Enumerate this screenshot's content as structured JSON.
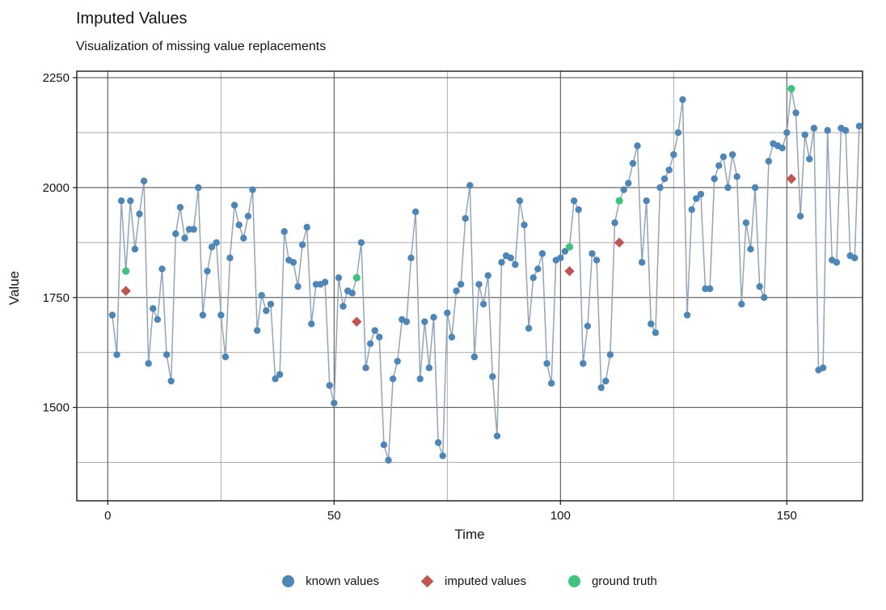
{
  "chart": {
    "title": "Imputed Values",
    "subtitle": "Visualization of missing value replacements",
    "xlabel": "Time",
    "ylabel": "Value",
    "colors": {
      "known": "#4c86b8",
      "imputed": "#c25450",
      "ground_truth": "#3ec47c",
      "line": "#92a5b8",
      "grid_major": "#474747",
      "grid_minor": "#a3a3a3",
      "frame": "#1a1a1a",
      "text": "#141414"
    },
    "legend": [
      {
        "label": "known values",
        "marker": "circle",
        "color": "#4c86b8"
      },
      {
        "label": "imputed values",
        "marker": "diamond",
        "color": "#c25450"
      },
      {
        "label": "ground truth",
        "marker": "circle",
        "color": "#3ec47c"
      }
    ]
  },
  "chart_data": {
    "type": "line",
    "title": "Imputed Values",
    "subtitle": "Visualization of missing value replacements",
    "xlabel": "Time",
    "ylabel": "Value",
    "x_ticks": [
      0,
      50,
      100,
      150
    ],
    "x_minor_ticks": [
      25,
      75,
      125
    ],
    "y_ticks": [
      1500,
      1750,
      2000,
      2250
    ],
    "y_minor_ticks": [
      1375,
      1625,
      1875,
      2125
    ],
    "xlim": [
      -7,
      167
    ],
    "ylim": [
      1290,
      2265
    ],
    "grid": true,
    "legend_position": "bottom",
    "series": [
      {
        "name": "known values",
        "marker": "circle",
        "points": [
          [
            1,
            1710
          ],
          [
            2,
            1620
          ],
          [
            3,
            1970
          ],
          [
            5,
            1970
          ],
          [
            6,
            1860
          ],
          [
            7,
            1940
          ],
          [
            8,
            2015
          ],
          [
            9,
            1600
          ],
          [
            10,
            1725
          ],
          [
            11,
            1700
          ],
          [
            12,
            1815
          ],
          [
            13,
            1620
          ],
          [
            14,
            1560
          ],
          [
            15,
            1895
          ],
          [
            16,
            1955
          ],
          [
            17,
            1885
          ],
          [
            18,
            1905
          ],
          [
            19,
            1905
          ],
          [
            20,
            2000
          ],
          [
            21,
            1710
          ],
          [
            22,
            1810
          ],
          [
            23,
            1865
          ],
          [
            24,
            1875
          ],
          [
            25,
            1710
          ],
          [
            26,
            1615
          ],
          [
            27,
            1840
          ],
          [
            28,
            1960
          ],
          [
            29,
            1915
          ],
          [
            30,
            1885
          ],
          [
            31,
            1935
          ],
          [
            32,
            1995
          ],
          [
            33,
            1675
          ],
          [
            34,
            1755
          ],
          [
            35,
            1720
          ],
          [
            36,
            1735
          ],
          [
            37,
            1565
          ],
          [
            38,
            1575
          ],
          [
            39,
            1900
          ],
          [
            40,
            1835
          ],
          [
            41,
            1830
          ],
          [
            42,
            1775
          ],
          [
            43,
            1870
          ],
          [
            44,
            1910
          ],
          [
            45,
            1690
          ],
          [
            46,
            1780
          ],
          [
            47,
            1780
          ],
          [
            48,
            1785
          ],
          [
            49,
            1550
          ],
          [
            50,
            1510
          ],
          [
            51,
            1795
          ],
          [
            52,
            1730
          ],
          [
            53,
            1765
          ],
          [
            54,
            1760
          ],
          [
            56,
            1875
          ],
          [
            57,
            1590
          ],
          [
            58,
            1645
          ],
          [
            59,
            1675
          ],
          [
            60,
            1660
          ],
          [
            61,
            1415
          ],
          [
            62,
            1380
          ],
          [
            63,
            1565
          ],
          [
            64,
            1605
          ],
          [
            65,
            1700
          ],
          [
            66,
            1695
          ],
          [
            67,
            1840
          ],
          [
            68,
            1945
          ],
          [
            69,
            1565
          ],
          [
            70,
            1695
          ],
          [
            71,
            1590
          ],
          [
            72,
            1705
          ],
          [
            73,
            1420
          ],
          [
            74,
            1390
          ],
          [
            75,
            1715
          ],
          [
            76,
            1660
          ],
          [
            77,
            1765
          ],
          [
            78,
            1780
          ],
          [
            79,
            1930
          ],
          [
            80,
            2005
          ],
          [
            81,
            1615
          ],
          [
            82,
            1780
          ],
          [
            83,
            1735
          ],
          [
            84,
            1800
          ],
          [
            85,
            1570
          ],
          [
            86,
            1435
          ],
          [
            87,
            1830
          ],
          [
            88,
            1845
          ],
          [
            89,
            1840
          ],
          [
            90,
            1825
          ],
          [
            91,
            1970
          ],
          [
            92,
            1915
          ],
          [
            93,
            1680
          ],
          [
            94,
            1795
          ],
          [
            95,
            1815
          ],
          [
            96,
            1850
          ],
          [
            97,
            1600
          ],
          [
            98,
            1555
          ],
          [
            99,
            1835
          ],
          [
            100,
            1840
          ],
          [
            101,
            1855
          ],
          [
            103,
            1970
          ],
          [
            104,
            1950
          ],
          [
            105,
            1600
          ],
          [
            106,
            1685
          ],
          [
            107,
            1850
          ],
          [
            108,
            1835
          ],
          [
            109,
            1545
          ],
          [
            110,
            1560
          ],
          [
            111,
            1620
          ],
          [
            112,
            1920
          ],
          [
            114,
            1995
          ],
          [
            115,
            2010
          ],
          [
            116,
            2055
          ],
          [
            117,
            2095
          ],
          [
            118,
            1830
          ],
          [
            119,
            1970
          ],
          [
            120,
            1690
          ],
          [
            121,
            1670
          ],
          [
            122,
            2000
          ],
          [
            123,
            2020
          ],
          [
            124,
            2040
          ],
          [
            125,
            2075
          ],
          [
            126,
            2125
          ],
          [
            127,
            2200
          ],
          [
            128,
            1710
          ],
          [
            129,
            1950
          ],
          [
            130,
            1975
          ],
          [
            131,
            1985
          ],
          [
            132,
            1770
          ],
          [
            133,
            1770
          ],
          [
            134,
            2020
          ],
          [
            135,
            2050
          ],
          [
            136,
            2070
          ],
          [
            137,
            2000
          ],
          [
            138,
            2075
          ],
          [
            139,
            2025
          ],
          [
            140,
            1735
          ],
          [
            141,
            1920
          ],
          [
            142,
            1860
          ],
          [
            143,
            2000
          ],
          [
            144,
            1775
          ],
          [
            145,
            1750
          ],
          [
            146,
            2060
          ],
          [
            147,
            2100
          ],
          [
            148,
            2095
          ],
          [
            149,
            2090
          ],
          [
            150,
            2125
          ],
          [
            152,
            2170
          ],
          [
            153,
            1935
          ],
          [
            154,
            2120
          ],
          [
            155,
            2065
          ],
          [
            156,
            2135
          ],
          [
            157,
            1585
          ],
          [
            158,
            1590
          ],
          [
            159,
            2130
          ],
          [
            160,
            1835
          ],
          [
            161,
            1830
          ],
          [
            162,
            2135
          ],
          [
            163,
            2130
          ],
          [
            164,
            1845
          ],
          [
            165,
            1840
          ],
          [
            166,
            2140
          ]
        ]
      },
      {
        "name": "imputed values",
        "marker": "diamond",
        "points": [
          [
            4,
            1765
          ],
          [
            55,
            1695
          ],
          [
            102,
            1810
          ],
          [
            113,
            1875
          ],
          [
            151,
            2020
          ]
        ]
      },
      {
        "name": "ground truth",
        "marker": "circle",
        "points": [
          [
            4,
            1810
          ],
          [
            55,
            1795
          ],
          [
            102,
            1865
          ],
          [
            113,
            1970
          ],
          [
            151,
            2225
          ]
        ]
      }
    ]
  }
}
